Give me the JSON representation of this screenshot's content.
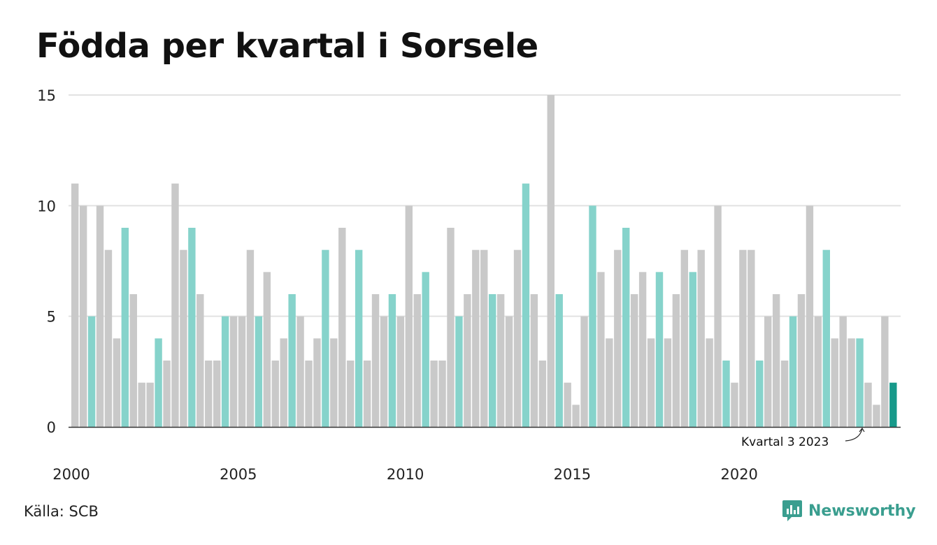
{
  "title": "Födda per kvartal i Sorsele",
  "source": "Källa: SCB",
  "brand": "Newsworthy",
  "colors": {
    "gray": "#c9c9c9",
    "teal": "#86d3cb",
    "highlight": "#17998a",
    "brand": "#3a9e8f"
  },
  "chart_data": {
    "type": "bar",
    "title": "Födda per kvartal i Sorsele",
    "xlabel": "",
    "ylabel": "",
    "ylim": [
      0,
      15
    ],
    "yticks": [
      "0",
      "5",
      "10",
      "15"
    ],
    "xticks": [
      "2000",
      "2005",
      "2010",
      "2015",
      "2020"
    ],
    "grid": true,
    "highlight_quarter": 3,
    "annotation": "Kvartal 3 2023",
    "start_year": 2000,
    "values": [
      11,
      10,
      5,
      10,
      8,
      4,
      9,
      6,
      2,
      2,
      4,
      3,
      11,
      8,
      9,
      6,
      3,
      3,
      5,
      5,
      5,
      8,
      5,
      7,
      3,
      4,
      6,
      5,
      3,
      4,
      8,
      4,
      9,
      3,
      8,
      3,
      6,
      5,
      6,
      5,
      10,
      6,
      7,
      3,
      3,
      9,
      5,
      6,
      8,
      8,
      6,
      6,
      5,
      8,
      11,
      6,
      3,
      15,
      6,
      2,
      1,
      5,
      10,
      7,
      4,
      8,
      9,
      6,
      7,
      4,
      7,
      4,
      6,
      8,
      7,
      8,
      4,
      10,
      3,
      2,
      8,
      8,
      3,
      5,
      6,
      3,
      5,
      6,
      10,
      5,
      8,
      4,
      5,
      4,
      4,
      2,
      1,
      5,
      2
    ]
  }
}
